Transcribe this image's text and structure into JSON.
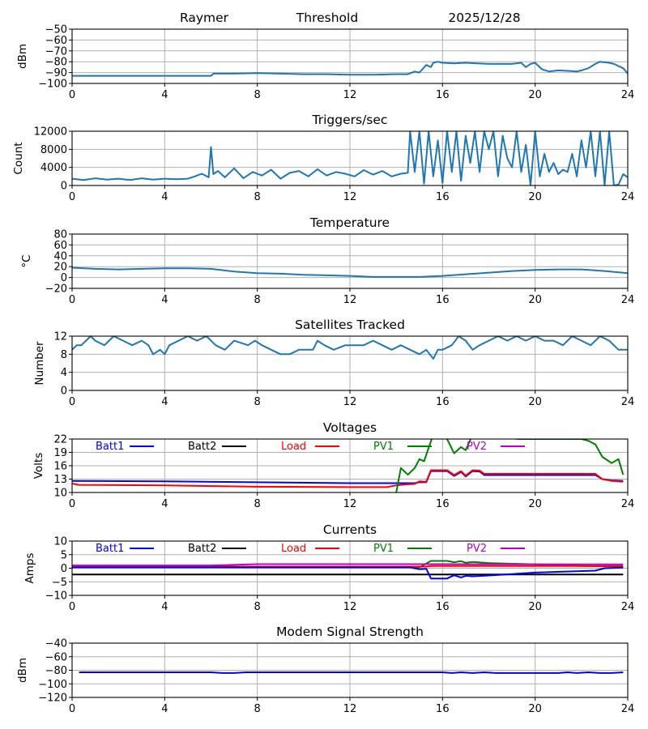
{
  "header": {
    "site": "Raymer",
    "mode": "Threshold",
    "date": "2025/12/28"
  },
  "colors": {
    "default_line": "#1f77b4",
    "Batt1": "#0000ff",
    "Batt2": "#000000",
    "Load": "#ff0000",
    "PV1": "#008000",
    "PV2": "#bf00bf",
    "grid": "#b0b0b0"
  },
  "chart_data": [
    {
      "id": "threshold",
      "type": "line",
      "title": "",
      "xlabel": "",
      "ylabel": "dBm",
      "xlim": [
        0,
        24
      ],
      "ylim": [
        -100,
        -50
      ],
      "xticks": [
        0,
        4,
        8,
        12,
        16,
        20,
        24
      ],
      "yticks": [
        -100,
        -90,
        -80,
        -70,
        -60,
        -50
      ],
      "ytick_labels": [
        "−100",
        "−90",
        "−80",
        "−70",
        "−60",
        "−50"
      ],
      "grid": true,
      "series": [
        {
          "name": "Threshold",
          "color": "#1f77b4",
          "x": [
            0,
            2,
            4,
            6,
            6.1,
            7,
            8,
            9,
            10,
            11,
            12,
            13,
            14,
            14.5,
            14.8,
            15.0,
            15.3,
            15.5,
            15.6,
            15.8,
            16,
            16.5,
            17,
            17.5,
            18,
            18.5,
            19,
            19.4,
            19.6,
            19.8,
            20,
            20.3,
            20.6,
            21,
            21.5,
            21.8,
            22,
            22.3,
            22.6,
            22.8,
            23,
            23.2,
            23.4,
            23.6,
            23.8,
            24
          ],
          "y": [
            -93,
            -93,
            -93,
            -93,
            -91,
            -91,
            -90.5,
            -91,
            -91.5,
            -91.5,
            -92,
            -92,
            -91.5,
            -91.5,
            -89,
            -90,
            -83,
            -85,
            -81,
            -80,
            -81,
            -81.5,
            -81,
            -81.5,
            -82,
            -82,
            -82,
            -81,
            -85,
            -82,
            -81,
            -87,
            -89,
            -88,
            -88.5,
            -89,
            -88,
            -86,
            -82,
            -80,
            -80.5,
            -81,
            -82,
            -84,
            -86,
            -91
          ]
        }
      ]
    },
    {
      "id": "triggers",
      "type": "line",
      "title": "Triggers/sec",
      "xlabel": "",
      "ylabel": "Count",
      "xlim": [
        0,
        24
      ],
      "ylim": [
        0,
        12000
      ],
      "xticks": [
        0,
        4,
        8,
        12,
        16,
        20,
        24
      ],
      "yticks": [
        0,
        4000,
        8000,
        12000
      ],
      "ytick_labels": [
        "0",
        "4000",
        "8000",
        "12000"
      ],
      "grid": true,
      "series": [
        {
          "name": "Triggers",
          "color": "#1f77b4",
          "x": [
            0,
            0.5,
            1,
            1.5,
            2,
            2.5,
            3,
            3.5,
            4,
            4.5,
            5,
            5.3,
            5.6,
            5.9,
            6.0,
            6.1,
            6.3,
            6.6,
            7.0,
            7.4,
            7.8,
            8.2,
            8.6,
            9.0,
            9.4,
            9.8,
            10.2,
            10.6,
            11.0,
            11.4,
            11.8,
            12.2,
            12.6,
            13.0,
            13.4,
            13.8,
            14.2,
            14.5,
            14.6,
            14.8,
            15.0,
            15.2,
            15.4,
            15.6,
            15.8,
            16.0,
            16.2,
            16.4,
            16.6,
            16.8,
            17.0,
            17.2,
            17.4,
            17.6,
            17.8,
            18.0,
            18.2,
            18.4,
            18.6,
            18.8,
            19.0,
            19.2,
            19.4,
            19.6,
            19.8,
            20.0,
            20.2,
            20.4,
            20.6,
            20.8,
            21.0,
            21.2,
            21.4,
            21.6,
            21.8,
            22.0,
            22.2,
            22.4,
            22.6,
            22.8,
            23.0,
            23.2,
            23.4,
            23.6,
            23.8,
            24
          ],
          "y": [
            1500,
            1200,
            1600,
            1300,
            1500,
            1200,
            1600,
            1300,
            1500,
            1400,
            1500,
            2000,
            2600,
            1800,
            8500,
            2500,
            3200,
            1800,
            3800,
            1600,
            3000,
            2200,
            3500,
            1500,
            2800,
            3200,
            2000,
            3600,
            2200,
            3000,
            2600,
            2000,
            3400,
            2400,
            3200,
            2000,
            2600,
            2800,
            12000,
            3000,
            12000,
            400,
            12000,
            2000,
            10000,
            500,
            12000,
            3000,
            12000,
            1000,
            11000,
            5000,
            12000,
            3000,
            12000,
            8000,
            12000,
            2000,
            11000,
            6000,
            4000,
            12000,
            3000,
            9000,
            0,
            12000,
            2000,
            7000,
            3000,
            5000,
            2500,
            3500,
            3000,
            7000,
            2000,
            10000,
            4000,
            12000,
            2000,
            12000,
            0,
            12000,
            0,
            200,
            2500,
            1800
          ]
        }
      ]
    },
    {
      "id": "temperature",
      "type": "line",
      "title": "Temperature",
      "xlabel": "",
      "ylabel": "°C",
      "xlim": [
        0,
        24
      ],
      "ylim": [
        -20,
        80
      ],
      "xticks": [
        0,
        4,
        8,
        12,
        16,
        20,
        24
      ],
      "yticks": [
        -20,
        0,
        20,
        40,
        60,
        80
      ],
      "ytick_labels": [
        "−20",
        "0",
        "20",
        "40",
        "60",
        "80"
      ],
      "grid": true,
      "series": [
        {
          "name": "Temperature",
          "color": "#1f77b4",
          "x": [
            0,
            1,
            2,
            3,
            4,
            5,
            6,
            7,
            8,
            9,
            10,
            11,
            12,
            13,
            14,
            15,
            16,
            17,
            18,
            19,
            20,
            21,
            22,
            23,
            24
          ],
          "y": [
            18,
            16,
            15,
            16,
            17,
            17,
            16,
            11,
            8,
            7,
            5,
            4,
            3,
            1,
            1,
            1,
            3,
            6,
            9,
            12,
            14,
            15,
            15,
            12,
            8
          ]
        }
      ]
    },
    {
      "id": "satellites",
      "type": "line",
      "title": "Satellites Tracked",
      "xlabel": "",
      "ylabel": "Number",
      "xlim": [
        0,
        24
      ],
      "ylim": [
        0,
        12
      ],
      "xticks": [
        0,
        4,
        8,
        12,
        16,
        20,
        24
      ],
      "yticks": [
        0,
        4,
        8,
        12
      ],
      "ytick_labels": [
        "0",
        "4",
        "8",
        "12"
      ],
      "grid": true,
      "series": [
        {
          "name": "Satellites",
          "color": "#1f77b4",
          "x": [
            0,
            0.2,
            0.4,
            0.6,
            0.8,
            1.0,
            1.4,
            1.6,
            1.8,
            2.2,
            2.6,
            3.0,
            3.3,
            3.5,
            3.8,
            4.0,
            4.2,
            4.6,
            5.0,
            5.4,
            5.8,
            6.2,
            6.6,
            7.0,
            7.6,
            7.9,
            8.2,
            8.6,
            9.0,
            9.4,
            9.8,
            10.4,
            10.6,
            10.9,
            11.3,
            11.8,
            12.2,
            12.6,
            13.0,
            13.4,
            13.8,
            14.2,
            14.6,
            15.0,
            15.3,
            15.6,
            15.8,
            16.0,
            16.4,
            16.7,
            17.0,
            17.3,
            17.6,
            18.0,
            18.4,
            18.8,
            19.2,
            19.6,
            20.0,
            20.4,
            20.8,
            21.2,
            21.6,
            22.0,
            22.4,
            22.8,
            23.2,
            23.6,
            24
          ],
          "y": [
            9,
            10,
            10,
            11,
            12,
            11,
            10,
            11,
            12,
            11,
            10,
            11,
            10,
            8,
            9,
            8,
            10,
            11,
            12,
            11,
            12,
            10,
            9,
            11,
            10,
            11,
            10,
            9,
            8,
            8,
            9,
            9,
            11,
            10,
            9,
            10,
            10,
            10,
            11,
            10,
            9,
            10,
            9,
            8,
            9,
            7,
            9,
            9,
            10,
            12,
            11,
            9,
            10,
            11,
            12,
            11,
            12,
            11,
            12,
            11,
            11,
            10,
            12,
            11,
            10,
            12,
            11,
            9,
            9
          ]
        }
      ]
    },
    {
      "id": "voltages",
      "type": "line",
      "title": "Voltages",
      "xlabel": "",
      "ylabel": "Volts",
      "xlim": [
        0,
        24
      ],
      "ylim": [
        10,
        22
      ],
      "xticks": [
        0,
        4,
        8,
        12,
        16,
        20,
        24
      ],
      "yticks": [
        10,
        13,
        16,
        19,
        22
      ],
      "ytick_labels": [
        "10",
        "13",
        "16",
        "19",
        "22"
      ],
      "grid": true,
      "legend": [
        "Batt1",
        "Batt2",
        "Load",
        "PV1",
        "PV2"
      ],
      "legend_loc": "top, single row",
      "series": [
        {
          "name": "Batt1",
          "color": "#0000ff",
          "x": [
            0,
            4,
            8,
            12,
            14,
            14.8,
            15.0,
            15.3,
            15.5,
            16.2,
            16.5,
            16.8,
            17.0,
            17.3,
            17.6,
            17.8,
            20,
            22.6,
            22.9,
            23.3,
            23.8
          ],
          "y": [
            12.6,
            12.5,
            12.3,
            12.1,
            12.1,
            12.1,
            12.3,
            12.3,
            14.8,
            14.8,
            13.7,
            14.6,
            13.6,
            14.8,
            14.7,
            13.9,
            13.9,
            13.9,
            13.0,
            12.7,
            12.6
          ]
        },
        {
          "name": "Load",
          "color": "#ff0000",
          "x": [
            0,
            0.3,
            4,
            8,
            12,
            13.6,
            14,
            14.4,
            14.8,
            15.0,
            15.3,
            15.5,
            16.2,
            16.5,
            16.8,
            17.0,
            17.3,
            17.6,
            17.8,
            20,
            22.6,
            22.9,
            23.3,
            23.8
          ],
          "y": [
            12.0,
            11.7,
            11.6,
            11.3,
            11.2,
            11.2,
            11.6,
            11.8,
            11.9,
            12.5,
            12.4,
            15.0,
            15.0,
            13.9,
            14.8,
            13.8,
            15.0,
            14.9,
            14.2,
            14.2,
            14.2,
            13.0,
            12.6,
            12.4
          ]
        },
        {
          "name": "PV1",
          "color": "#008000",
          "x": [
            14.0,
            14.2,
            14.5,
            14.8,
            15.0,
            15.2,
            15.6,
            16.0,
            16.2,
            16.5,
            16.8,
            17.0,
            17.3,
            19.3,
            19.7,
            22.0,
            22.3,
            22.6,
            22.9,
            23.3,
            23.6,
            23.8
          ],
          "y": [
            10.0,
            15.5,
            14.0,
            15.5,
            17.5,
            17.0,
            23.0,
            23.0,
            22.0,
            18.8,
            20.2,
            19.5,
            23.0,
            22.0,
            22.0,
            22.0,
            21.6,
            20.8,
            18.0,
            16.6,
            17.5,
            14.0
          ]
        }
      ]
    },
    {
      "id": "currents",
      "type": "line",
      "title": "Currents",
      "xlabel": "",
      "ylabel": "Amps",
      "xlim": [
        0,
        24
      ],
      "ylim": [
        -10,
        10
      ],
      "xticks": [
        0,
        4,
        8,
        12,
        16,
        20,
        24
      ],
      "yticks": [
        -10,
        -5,
        0,
        5,
        10
      ],
      "ytick_labels": [
        "−10",
        "−5",
        "0",
        "5",
        "10"
      ],
      "grid": true,
      "legend": [
        "Batt1",
        "Batt2",
        "Load",
        "PV1",
        "PV2"
      ],
      "legend_loc": "top, single row",
      "series": [
        {
          "name": "Batt2",
          "color": "#000000",
          "x": [
            0,
            8,
            16,
            23.8
          ],
          "y": [
            -2.3,
            -2.3,
            -2.3,
            -2.3
          ]
        },
        {
          "name": "PV1",
          "color": "#008000",
          "x": [
            0,
            15.0,
            15.5,
            16.2,
            16.5,
            16.8,
            17.0,
            17.3,
            18,
            20,
            22,
            23.8
          ],
          "y": [
            0.3,
            0.3,
            2.7,
            2.7,
            2.2,
            2.6,
            2.0,
            2.3,
            1.9,
            1.4,
            0.8,
            0.6
          ]
        },
        {
          "name": "Load",
          "color": "#ff0000",
          "x": [
            0,
            8,
            15.3,
            15.5,
            23.8
          ],
          "y": [
            0.6,
            0.6,
            0.6,
            0.8,
            0.8
          ]
        },
        {
          "name": "Batt1",
          "color": "#0000ff",
          "x": [
            0,
            14.6,
            15.0,
            15.3,
            15.5,
            16.2,
            16.5,
            16.8,
            17.0,
            17.3,
            18,
            20,
            22.6,
            23.0,
            23.8
          ],
          "y": [
            0.3,
            0.3,
            -0.4,
            -0.2,
            -3.8,
            -3.8,
            -2.6,
            -3.4,
            -2.8,
            -3.0,
            -2.7,
            -1.6,
            -0.9,
            0.0,
            0.2
          ]
        },
        {
          "name": "PV2",
          "color": "#bf00bf",
          "x": [
            0,
            6,
            8,
            16,
            23.8
          ],
          "y": [
            1.0,
            1.0,
            1.5,
            1.5,
            1.4
          ]
        }
      ]
    },
    {
      "id": "modem",
      "type": "line",
      "title": "Modem Signal Strength",
      "xlabel": "",
      "ylabel": "dBm",
      "xlim": [
        0,
        24
      ],
      "ylim": [
        -120,
        -40
      ],
      "xticks": [
        0,
        4,
        8,
        12,
        16,
        20,
        24
      ],
      "yticks": [
        -120,
        -100,
        -80,
        -60,
        -40
      ],
      "ytick_labels": [
        "−120",
        "−100",
        "−80",
        "−60",
        "−40"
      ],
      "grid": true,
      "series": [
        {
          "name": "Modem",
          "color": "#0000ff",
          "x": [
            0.3,
            6,
            6.5,
            7,
            7.5,
            16,
            16.4,
            16.8,
            17.3,
            17.8,
            18.3,
            21,
            21.4,
            21.8,
            22.3,
            22.8,
            23.3,
            23.8
          ],
          "y": [
            -83,
            -83,
            -84,
            -84,
            -83,
            -83,
            -84,
            -83,
            -84,
            -83,
            -84,
            -84,
            -83,
            -84,
            -83,
            -84,
            -84,
            -83
          ]
        }
      ]
    }
  ]
}
